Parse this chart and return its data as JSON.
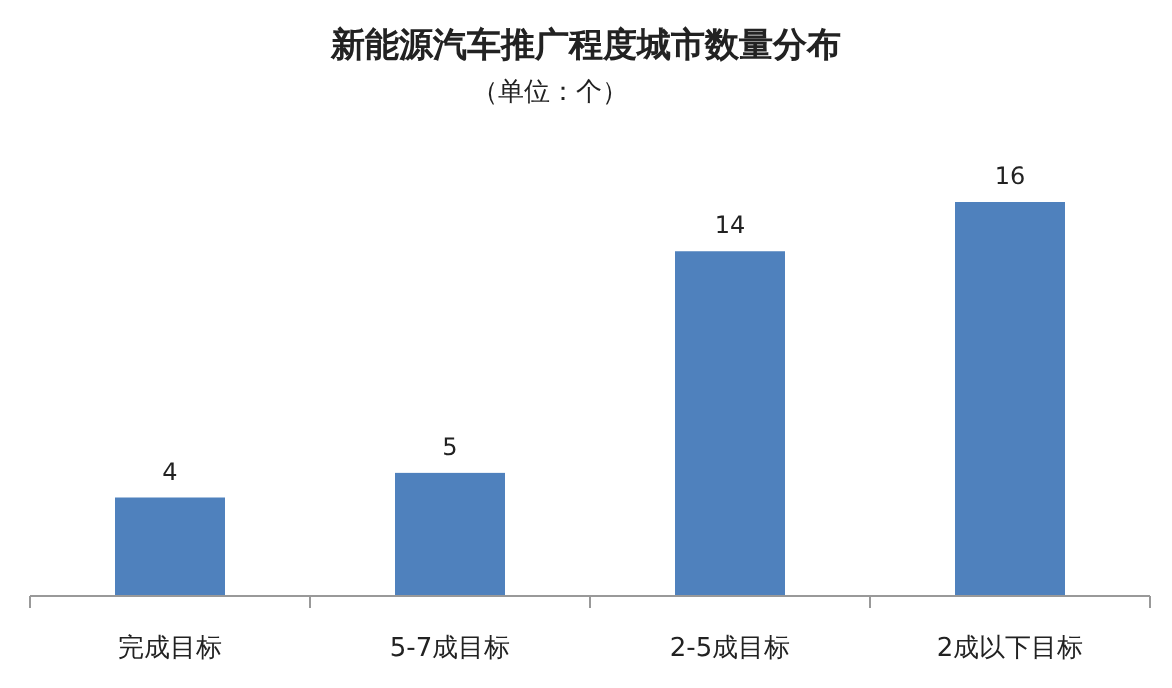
{
  "chart_data": {
    "type": "bar",
    "title": "新能源汽车推广程度城市数量分布",
    "subtitle": "（单位：个）",
    "categories": [
      "完成目标",
      "5-7成目标",
      "2-5成目标",
      "2成以下目标"
    ],
    "values": [
      4,
      5,
      14,
      16
    ],
    "color": "#4f81bd",
    "data_labels": true
  }
}
